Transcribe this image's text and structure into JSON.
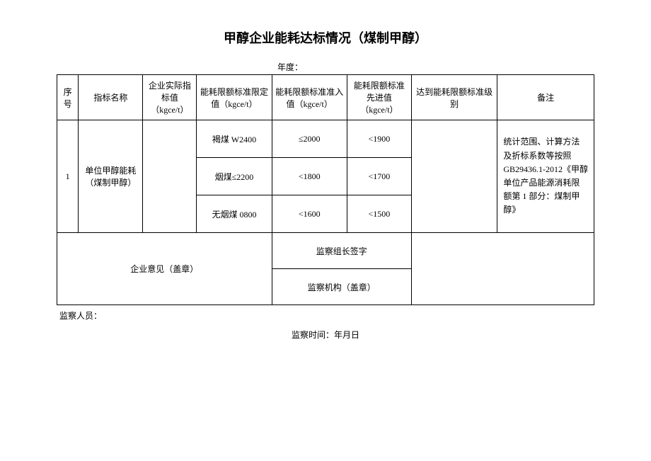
{
  "title": "甲醇企业能耗达标情况（煤制甲醇）",
  "year_label": "年度：",
  "headers": {
    "seq": "序号",
    "indicator": "指标名称",
    "actual": "企业实际指标值（kgce/t）",
    "limit": "能耗限额标准限定值（kgce/t）",
    "access": "能耗限额标准准入值（kgce/t）",
    "advance": "能耗限额标准先进值（kgce/t）",
    "level": "达到能耗限额标准级别",
    "remark": "备注"
  },
  "row1": {
    "seq": "1",
    "indicator": "单位甲醇能耗（煤制甲醇）",
    "sub": [
      {
        "limit": "褐煤 W2400",
        "access": "≤2000",
        "advance": "<1900"
      },
      {
        "limit": "烟煤≤2200",
        "access": "<1800",
        "advance": "<1700"
      },
      {
        "limit": "无烟煤 0800",
        "access": "<1600",
        "advance": "<1500"
      }
    ],
    "remark": "统计范围、计算方法及折标系数等按照 GB29436.1-2012《甲醇单位产品能源消耗限额第 1 部分：煤制甲醇》"
  },
  "signatures": {
    "enterprise": "企业意见（盖章）",
    "leader": "监察组长签字",
    "org": "监察机构（盖章）"
  },
  "footer": {
    "personnel": "监察人员：",
    "time": "监察时间：年月日"
  }
}
